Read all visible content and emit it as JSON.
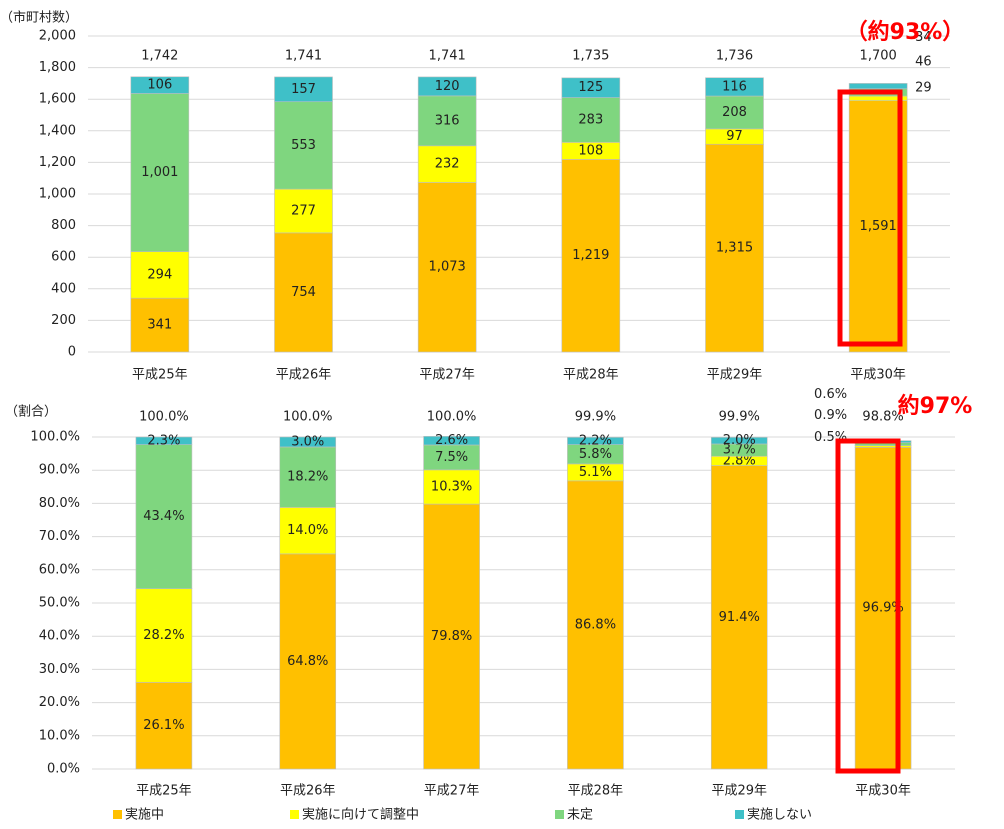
{
  "chart_data": [
    {
      "type": "bar",
      "stacked": true,
      "y_label": "（市町村数）",
      "categories": [
        "平成25年",
        "平成26年",
        "平成27年",
        "平成28年",
        "平成29年",
        "平成30年"
      ],
      "series": [
        {
          "name": "実施中",
          "color": "#ffc000",
          "values": [
            341,
            754,
            1073,
            1219,
            1315,
            1591
          ],
          "value_labels": [
            "341",
            "754",
            "1,073",
            "1,219",
            "1,315",
            "1,591"
          ]
        },
        {
          "name": "実施に向けて調整中",
          "color": "#ffff00",
          "values": [
            294,
            277,
            232,
            108,
            97,
            29
          ]
        },
        {
          "name": "未定",
          "color": "#7fd67f",
          "values": [
            1001,
            553,
            316,
            283,
            208,
            46
          ],
          "value_labels": [
            "1,001",
            "553",
            "316",
            "283",
            "208",
            "46"
          ]
        },
        {
          "name": "実施しない",
          "color": "#3fc0c8",
          "values": [
            106,
            157,
            120,
            125,
            116,
            34
          ]
        }
      ],
      "total_labels": [
        "1,742",
        "1,741",
        "1,741",
        "1,735",
        "1,736",
        "1,700"
      ],
      "ylim": [
        0,
        2000
      ],
      "yticks": [
        0,
        200,
        400,
        600,
        800,
        {
          "value": 1000,
          "label": "1,000"
        },
        {
          "value": 1200,
          "label": "1,200"
        },
        {
          "value": 1400,
          "label": "1,400"
        },
        {
          "value": 1600,
          "label": "1,600"
        },
        {
          "value": 1800,
          "label": "1,800"
        },
        {
          "value": 2000,
          "label": "2,000"
        }
      ],
      "grid": true,
      "annotation": "（約93%）"
    },
    {
      "type": "bar",
      "stacked": true,
      "y_label": "（割合）",
      "categories": [
        "平成25年",
        "平成26年",
        "平成27年",
        "平成28年",
        "平成29年",
        "平成30年"
      ],
      "series": [
        {
          "name": "実施中",
          "color": "#ffc000",
          "values": [
            26.1,
            64.8,
            79.8,
            86.8,
            91.4,
            96.9
          ],
          "value_labels": [
            "26.1%",
            "64.8%",
            "79.8%",
            "86.8%",
            "91.4%",
            "96.9%"
          ]
        },
        {
          "name": "実施に向けて調整中",
          "color": "#ffff00",
          "values": [
            28.2,
            14.0,
            10.3,
            5.1,
            2.8,
            0.5
          ],
          "value_labels": [
            "28.2%",
            "14.0%",
            "10.3%",
            "5.1%",
            "2.8%",
            "0.5%"
          ]
        },
        {
          "name": "未定",
          "color": "#7fd67f",
          "values": [
            43.4,
            18.2,
            7.5,
            5.8,
            3.7,
            0.9
          ],
          "value_labels": [
            "43.4%",
            "18.2%",
            "7.5%",
            "5.8%",
            "3.7%",
            "0.9%"
          ]
        },
        {
          "name": "実施しない",
          "color": "#3fc0c8",
          "values": [
            2.3,
            3.0,
            2.6,
            2.2,
            2.0,
            0.6
          ],
          "value_labels": [
            "2.3%",
            "3.0%",
            "2.6%",
            "2.2%",
            "2.0%",
            "0.6%"
          ]
        }
      ],
      "total_labels": [
        "100.0%",
        "100.0%",
        "100.0%",
        "99.9%",
        "99.9%",
        "98.8%"
      ],
      "ylim": [
        0,
        100
      ],
      "yticks": [
        {
          "value": 0,
          "label": "0.0%"
        },
        {
          "value": 10,
          "label": "10.0%"
        },
        {
          "value": 20,
          "label": "20.0%"
        },
        {
          "value": 30,
          "label": "30.0%"
        },
        {
          "value": 40,
          "label": "40.0%"
        },
        {
          "value": 50,
          "label": "50.0%"
        },
        {
          "value": 60,
          "label": "60.0%"
        },
        {
          "value": 70,
          "label": "70.0%"
        },
        {
          "value": 80,
          "label": "80.0%"
        },
        {
          "value": 90,
          "label": "90.0%"
        },
        {
          "value": 100,
          "label": "100.0%"
        }
      ],
      "grid": true,
      "annotation": "約97%"
    }
  ]
}
